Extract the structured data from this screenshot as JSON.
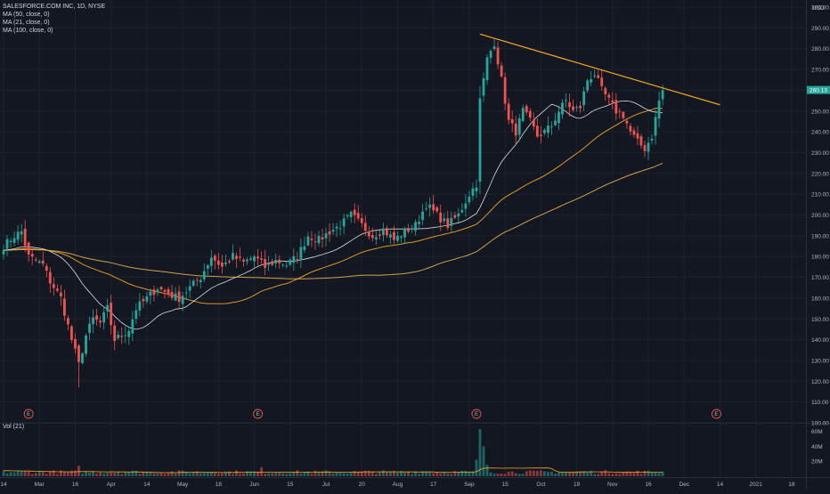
{
  "header": {
    "symbol_line": "SALESFORCE.COM INC, 1D, NYSE",
    "indicators": [
      "MA (50, close, 0)",
      "MA (21, close, 0)",
      "MA (100, close, 0)"
    ],
    "volume_label": "Vol (21)"
  },
  "currency": "USD",
  "last_price": "260.13",
  "colors": {
    "background": "#131722",
    "up": "#26a69a",
    "down": "#ef5350",
    "ma50": "#f5a623",
    "ma21": "#ffffff",
    "ma100": "#e8b04a",
    "trendline": "#f5a623",
    "grid": "#1e222d"
  },
  "chart_data": [
    {
      "type": "candlestick",
      "title": "SALESFORCE.COM INC, 1D, NYSE",
      "y_axis": {
        "ticks": [
          100,
          110,
          120,
          130,
          140,
          150,
          160,
          170,
          180,
          190,
          200,
          210,
          220,
          230,
          240,
          250,
          260,
          270,
          280,
          290,
          300
        ],
        "tick_labels": [
          "100.00",
          "110.00",
          "120.00",
          "130.00",
          "140.00",
          "150.00",
          "160.00",
          "170.00",
          "180.00",
          "190.00",
          "200.00",
          "210.00",
          "220.00",
          "230.00",
          "240.00",
          "250.00",
          "260.00",
          "270.00",
          "280.00",
          "290.00",
          "300.00"
        ],
        "ylim": [
          100,
          300
        ]
      },
      "x_axis": {
        "ticks": [
          0,
          10,
          20,
          30,
          40,
          50,
          60,
          70,
          80,
          90,
          100,
          110,
          120,
          130,
          140,
          150,
          160,
          170,
          180,
          190,
          200,
          210,
          220
        ],
        "tick_labels": [
          "14",
          "Mar",
          "16",
          "Apr",
          "14",
          "May",
          "18",
          "Jun",
          "15",
          "Jul",
          "20",
          "Aug",
          "17",
          "Sep",
          "15",
          "Oct",
          "19",
          "Nov",
          "16",
          "Dec",
          "14",
          "2021",
          "18"
        ],
        "xlim": [
          -1,
          224
        ]
      },
      "earnings_markers": {
        "label": "E",
        "x": [
          7,
          71,
          132,
          199
        ]
      },
      "anchors": [
        {
          "i": 0,
          "c": 185
        },
        {
          "i": 3,
          "c": 190
        },
        {
          "i": 5,
          "c": 192
        },
        {
          "i": 7,
          "c": 180
        },
        {
          "i": 9,
          "c": 178
        },
        {
          "i": 11,
          "c": 176
        },
        {
          "i": 13,
          "c": 168
        },
        {
          "i": 16,
          "c": 160
        },
        {
          "i": 19,
          "c": 140
        },
        {
          "i": 21,
          "c": 128
        },
        {
          "i": 23,
          "c": 142
        },
        {
          "i": 25,
          "c": 150
        },
        {
          "i": 27,
          "c": 148
        },
        {
          "i": 29,
          "c": 155
        },
        {
          "i": 31,
          "c": 140
        },
        {
          "i": 33,
          "c": 142
        },
        {
          "i": 35,
          "c": 145
        },
        {
          "i": 37,
          "c": 155
        },
        {
          "i": 40,
          "c": 160
        },
        {
          "i": 43,
          "c": 165
        },
        {
          "i": 46,
          "c": 162
        },
        {
          "i": 49,
          "c": 160
        },
        {
          "i": 52,
          "c": 165
        },
        {
          "i": 55,
          "c": 170
        },
        {
          "i": 58,
          "c": 180
        },
        {
          "i": 61,
          "c": 175
        },
        {
          "i": 64,
          "c": 180
        },
        {
          "i": 67,
          "c": 177
        },
        {
          "i": 70,
          "c": 180
        },
        {
          "i": 73,
          "c": 175
        },
        {
          "i": 76,
          "c": 178
        },
        {
          "i": 79,
          "c": 176
        },
        {
          "i": 82,
          "c": 180
        },
        {
          "i": 85,
          "c": 190
        },
        {
          "i": 88,
          "c": 188
        },
        {
          "i": 91,
          "c": 192
        },
        {
          "i": 94,
          "c": 195
        },
        {
          "i": 97,
          "c": 200
        },
        {
          "i": 100,
          "c": 195
        },
        {
          "i": 103,
          "c": 190
        },
        {
          "i": 106,
          "c": 193
        },
        {
          "i": 109,
          "c": 188
        },
        {
          "i": 112,
          "c": 192
        },
        {
          "i": 115,
          "c": 195
        },
        {
          "i": 118,
          "c": 205
        },
        {
          "i": 121,
          "c": 200
        },
        {
          "i": 124,
          "c": 195
        },
        {
          "i": 127,
          "c": 200
        },
        {
          "i": 130,
          "c": 210
        },
        {
          "i": 132,
          "c": 215
        },
        {
          "i": 133,
          "c": 255
        },
        {
          "i": 135,
          "c": 275
        },
        {
          "i": 137,
          "c": 283
        },
        {
          "i": 139,
          "c": 265
        },
        {
          "i": 141,
          "c": 245
        },
        {
          "i": 143,
          "c": 240
        },
        {
          "i": 145,
          "c": 250
        },
        {
          "i": 147,
          "c": 245
        },
        {
          "i": 149,
          "c": 238
        },
        {
          "i": 151,
          "c": 240
        },
        {
          "i": 153,
          "c": 243
        },
        {
          "i": 155,
          "c": 250
        },
        {
          "i": 157,
          "c": 255
        },
        {
          "i": 159,
          "c": 250
        },
        {
          "i": 161,
          "c": 252
        },
        {
          "i": 163,
          "c": 265
        },
        {
          "i": 165,
          "c": 268
        },
        {
          "i": 167,
          "c": 260
        },
        {
          "i": 169,
          "c": 255
        },
        {
          "i": 171,
          "c": 250
        },
        {
          "i": 173,
          "c": 248
        },
        {
          "i": 175,
          "c": 240
        },
        {
          "i": 177,
          "c": 235
        },
        {
          "i": 179,
          "c": 232
        },
        {
          "i": 181,
          "c": 238
        },
        {
          "i": 183,
          "c": 255
        },
        {
          "i": 184,
          "c": 260
        }
      ],
      "trendline": {
        "from": {
          "x": 133,
          "y": 287
        },
        "to": {
          "x": 200,
          "y": 253
        },
        "color": "#f5a623"
      },
      "moving_averages": [
        {
          "name": "MA (50, close, 0)",
          "period": 50
        },
        {
          "name": "MA (21, close, 0)",
          "period": 21
        },
        {
          "name": "MA (100, close, 0)",
          "period": 100
        }
      ]
    },
    {
      "type": "bar",
      "title": "Vol (21)",
      "y_axis": {
        "ticks": [
          20,
          40,
          60
        ],
        "tick_labels": [
          "20M",
          "40M",
          "60M"
        ],
        "ylim": [
          0,
          70
        ]
      },
      "spikes": [
        {
          "i": 133,
          "v": 63
        },
        {
          "i": 134,
          "v": 40
        },
        {
          "i": 132,
          "v": 22
        },
        {
          "i": 135,
          "v": 15
        },
        {
          "i": 72,
          "v": 12
        },
        {
          "i": 21,
          "v": 14
        }
      ]
    }
  ]
}
